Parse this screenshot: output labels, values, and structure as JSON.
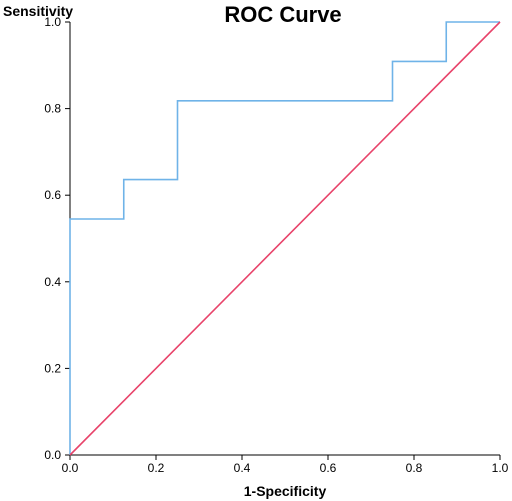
{
  "chart_data": {
    "type": "line",
    "title": "ROC Curve",
    "xlabel": "1-Specificity",
    "ylabel": "Sensitivity",
    "xlim": [
      0,
      1
    ],
    "ylim": [
      0,
      1
    ],
    "xticks": [
      "0.0",
      "0.2",
      "0.4",
      "0.6",
      "0.8",
      "1.0"
    ],
    "yticks": [
      "0.0",
      "0.2",
      "0.4",
      "0.6",
      "0.8",
      "1.0"
    ],
    "grid": false,
    "series": [
      {
        "color": "#6fb3e8",
        "step": true,
        "x": [
          0.0,
          0.0,
          0.125,
          0.125,
          0.25,
          0.25,
          0.75,
          0.75,
          0.875,
          0.875,
          1.0
        ],
        "y": [
          0.0,
          0.545,
          0.545,
          0.636,
          0.636,
          0.818,
          0.818,
          0.909,
          0.909,
          1.0,
          1.0
        ]
      },
      {
        "color": "#e8436a",
        "step": false,
        "x": [
          0.0,
          1.0
        ],
        "y": [
          0.0,
          1.0
        ]
      }
    ]
  }
}
